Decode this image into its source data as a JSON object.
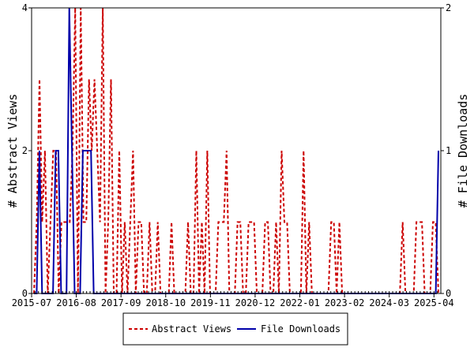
{
  "chart_data": {
    "type": "line",
    "title": "",
    "ylabel_left": "# Abstract Views",
    "ylabel_right": "# File Downloads",
    "x_tick_labels": [
      "2015-07",
      "2016-08",
      "2017-09",
      "2018-10",
      "2019-11",
      "2020-12",
      "2022-01",
      "2023-02",
      "2024-03",
      "2025-04"
    ],
    "x_range": [
      "2015-07",
      "2025-06"
    ],
    "ylim_left": [
      0,
      4
    ],
    "ylim_right": [
      0,
      2
    ],
    "y_ticks_left": [
      "0",
      "2",
      "4"
    ],
    "y_ticks_right": [
      "0",
      "1",
      "2"
    ],
    "legend_position": "bottom",
    "series": [
      {
        "name": "Abstract Views",
        "axis": "left",
        "color": "#cc0000",
        "style": "dashed",
        "values": [
          0,
          1,
          3,
          1,
          2,
          0,
          1,
          2,
          2,
          0,
          1,
          1,
          1,
          1,
          2,
          4,
          0,
          4,
          1,
          1,
          3,
          2,
          3,
          2,
          1,
          4,
          0,
          1,
          3,
          0,
          0,
          2,
          0,
          1,
          0,
          1,
          2,
          0,
          1,
          1,
          0,
          0,
          1,
          0,
          0,
          1,
          0,
          0,
          0,
          0,
          1,
          0,
          0,
          0,
          0,
          0,
          1,
          0,
          0,
          2,
          0,
          1,
          0,
          2,
          0,
          0,
          0,
          1,
          1,
          1,
          2,
          0,
          0,
          0,
          1,
          1,
          0,
          0,
          1,
          1,
          1,
          0,
          0,
          0,
          1,
          1,
          0,
          0,
          1,
          0,
          2,
          1,
          1,
          0,
          0,
          0,
          0,
          0,
          2,
          0,
          1,
          0,
          0,
          0,
          0,
          0,
          0,
          0,
          1,
          1,
          0,
          1,
          0,
          0,
          0,
          0,
          0,
          0,
          0,
          0,
          0,
          0,
          0,
          0,
          0,
          0,
          0,
          0,
          0,
          0,
          0,
          0,
          0,
          0,
          1,
          0,
          0,
          0,
          0,
          1,
          1,
          1,
          0,
          0,
          0,
          1,
          1,
          0
        ]
      },
      {
        "name": "File Downloads",
        "axis": "right",
        "color": "#0000aa",
        "style": "solid",
        "values": [
          0,
          0,
          1,
          0,
          0,
          0,
          0,
          0,
          1,
          1,
          0,
          0,
          0,
          2,
          1,
          0,
          0,
          0,
          1,
          1,
          1,
          1,
          0,
          0,
          0,
          0,
          0,
          0,
          0,
          0,
          0,
          0,
          0,
          0,
          0,
          0,
          0,
          0,
          0,
          0,
          0,
          0,
          0,
          0,
          0,
          0,
          0,
          0,
          0,
          0,
          0,
          0,
          0,
          0,
          0,
          0,
          0,
          0,
          0,
          0,
          0,
          0,
          0,
          0,
          0,
          0,
          0,
          0,
          0,
          0,
          0,
          0,
          0,
          0,
          0,
          0,
          0,
          0,
          0,
          0,
          0,
          0,
          0,
          0,
          0,
          0,
          0,
          0,
          0,
          0,
          0,
          0,
          0,
          0,
          0,
          0,
          0,
          0,
          0,
          0,
          0,
          0,
          0,
          0,
          0,
          0,
          0,
          0,
          0,
          0,
          0,
          0,
          0,
          0,
          0,
          0,
          0,
          0,
          0,
          0,
          0,
          0,
          0,
          0,
          0,
          0,
          0,
          0,
          0,
          0,
          0,
          0,
          0,
          0,
          0,
          0,
          0,
          0,
          0,
          0,
          0,
          0,
          0,
          0,
          0,
          0,
          0,
          0,
          0,
          1
        ]
      }
    ]
  }
}
